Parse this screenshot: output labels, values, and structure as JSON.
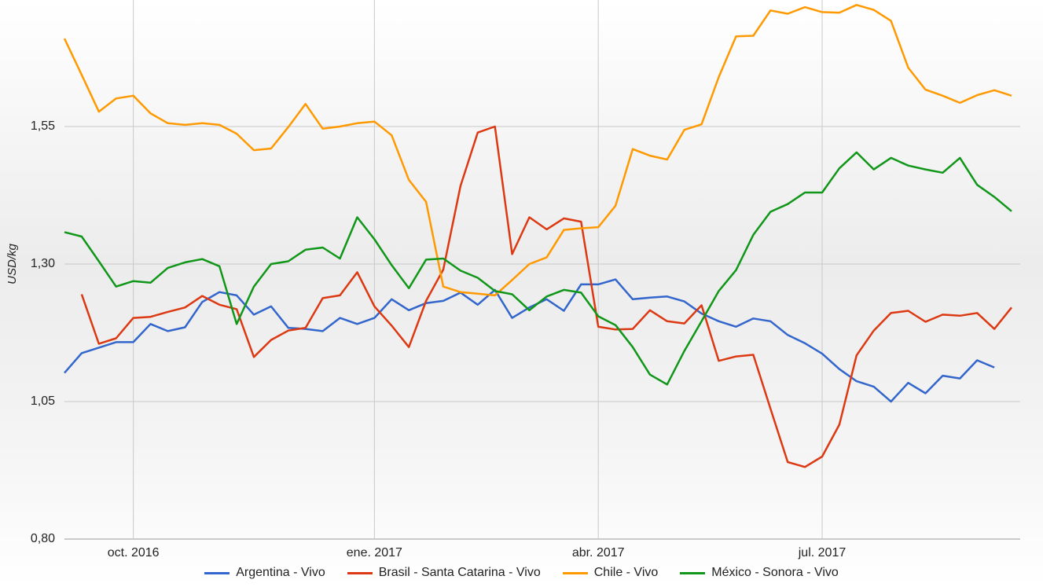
{
  "chart_data": {
    "type": "line",
    "y_label": "USD/kg",
    "categories": [
      null,
      null,
      null,
      null,
      "oct. 2016",
      null,
      null,
      null,
      null,
      null,
      null,
      null,
      null,
      null,
      null,
      null,
      null,
      null,
      "ene. 2017",
      null,
      null,
      null,
      null,
      null,
      null,
      null,
      null,
      null,
      null,
      null,
      null,
      "abr. 2017",
      null,
      null,
      null,
      null,
      null,
      null,
      null,
      null,
      null,
      null,
      null,
      null,
      "jul. 2017",
      null,
      null,
      null,
      null,
      null,
      null,
      null,
      null,
      null,
      null,
      null
    ],
    "series": [
      {
        "name": "Argentina - Vivo",
        "color": "#3366cc",
        "values": [
          1.102,
          1.138,
          1.148,
          1.158,
          1.158,
          1.191,
          1.178,
          1.185,
          1.231,
          1.249,
          1.243,
          1.208,
          1.223,
          1.184,
          1.182,
          1.178,
          1.202,
          1.191,
          1.202,
          1.236,
          1.216,
          1.229,
          1.233,
          1.248,
          1.226,
          1.253,
          1.202,
          1.221,
          1.236,
          1.215,
          1.263,
          1.263,
          1.272,
          1.236,
          1.239,
          1.241,
          1.232,
          1.21,
          1.196,
          1.186,
          1.201,
          1.196,
          1.171,
          1.156,
          1.137,
          1.109,
          1.087,
          1.077,
          1.05,
          1.084,
          1.065,
          1.097,
          1.092,
          1.125,
          1.112,
          null
        ]
      },
      {
        "name": "Brasil - Santa Catarina - Vivo",
        "color": "#dc3912",
        "values": [
          null,
          1.245,
          1.155,
          1.165,
          1.202,
          1.204,
          1.213,
          1.221,
          1.242,
          1.226,
          1.218,
          1.131,
          1.162,
          1.179,
          1.184,
          1.238,
          1.243,
          1.285,
          1.223,
          1.188,
          1.149,
          1.233,
          1.29,
          1.442,
          1.539,
          1.55,
          1.318,
          1.385,
          1.363,
          1.383,
          1.377,
          1.186,
          1.181,
          1.182,
          1.216,
          1.196,
          1.192,
          1.225,
          1.124,
          1.132,
          1.135,
          1.037,
          0.94,
          0.931,
          0.95,
          1.008,
          1.134,
          1.179,
          1.211,
          1.215,
          1.195,
          1.208,
          1.206,
          1.211,
          1.182,
          1.221
        ]
      },
      {
        "name": "Chile - Vivo",
        "color": "#ff9900",
        "values": [
          1.71,
          1.644,
          1.577,
          1.601,
          1.606,
          1.574,
          1.556,
          1.553,
          1.556,
          1.553,
          1.537,
          1.507,
          1.51,
          1.549,
          1.591,
          1.546,
          1.55,
          1.556,
          1.559,
          1.534,
          1.453,
          1.413,
          1.259,
          1.249,
          1.246,
          1.243,
          1.271,
          1.3,
          1.312,
          1.362,
          1.365,
          1.367,
          1.406,
          1.509,
          1.497,
          1.49,
          1.544,
          1.554,
          1.64,
          1.714,
          1.715,
          1.761,
          1.755,
          1.767,
          1.758,
          1.757,
          1.771,
          1.762,
          1.742,
          1.657,
          1.617,
          1.606,
          1.593,
          1.607,
          1.616,
          1.606
        ]
      },
      {
        "name": "México - Sonora - Vivo",
        "color": "#109618",
        "values": [
          1.358,
          1.35,
          1.305,
          1.259,
          1.269,
          1.266,
          1.293,
          1.303,
          1.309,
          1.296,
          1.191,
          1.259,
          1.3,
          1.305,
          1.326,
          1.33,
          1.31,
          1.385,
          1.345,
          1.298,
          1.256,
          1.308,
          1.31,
          1.288,
          1.275,
          1.251,
          1.245,
          1.216,
          1.241,
          1.253,
          1.248,
          1.205,
          1.189,
          1.149,
          1.099,
          1.081,
          1.142,
          1.196,
          1.251,
          1.289,
          1.353,
          1.395,
          1.409,
          1.43,
          1.43,
          1.474,
          1.503,
          1.472,
          1.493,
          1.479,
          1.472,
          1.466,
          1.493,
          1.444,
          1.422,
          1.396
        ]
      }
    ],
    "ylim": [
      0.8,
      1.78
    ],
    "yticks": [
      {
        "value": 0.8,
        "label": "0,80"
      },
      {
        "value": 1.05,
        "label": "1,05"
      },
      {
        "value": 1.3,
        "label": "1,30"
      },
      {
        "value": 1.55,
        "label": "1,55"
      }
    ],
    "grid": true
  }
}
